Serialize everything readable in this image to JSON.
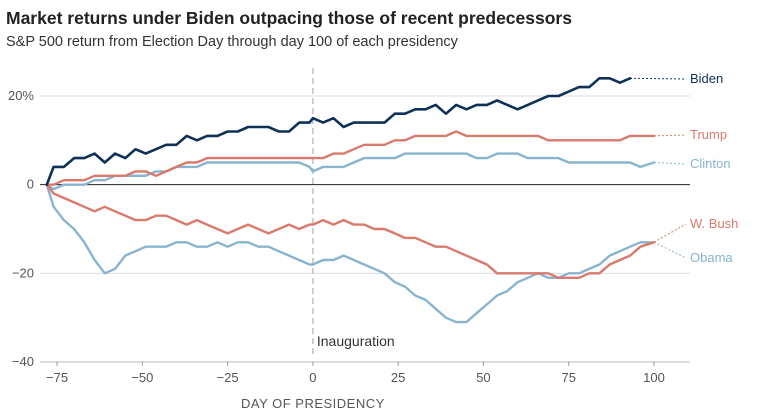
{
  "header": {
    "title": "Market returns under Biden outpacing those of recent predecessors",
    "subtitle": "S&P 500 return from Election Day through day 100 of each presidency"
  },
  "chart_data": {
    "type": "line",
    "title": "Market returns under Biden outpacing those of recent predecessors",
    "subtitle": "S&P 500 return from Election Day through day 100 of each presidency",
    "xlabel": "DAY OF PRESIDENCY",
    "ylabel": "",
    "xlim": [
      -80,
      110
    ],
    "ylim": [
      -40,
      25
    ],
    "x_ticks": [
      -75,
      -50,
      -25,
      0,
      25,
      50,
      75,
      100
    ],
    "x_tick_labels": [
      "−75",
      "−50",
      "−25",
      "0",
      "25",
      "50",
      "75",
      "100"
    ],
    "y_ticks": [
      20,
      0,
      -20,
      -40
    ],
    "y_tick_labels": [
      "20%",
      "0",
      "−20",
      "−40"
    ],
    "grid": "horizontal",
    "annotation": {
      "text": "Inauguration",
      "x": 0
    },
    "series": [
      {
        "name": "Biden",
        "color": "#0e3158",
        "x": [
          -78,
          -76,
          -73,
          -70,
          -67,
          -64,
          -61,
          -58,
          -55,
          -52,
          -49,
          -46,
          -43,
          -40,
          -37,
          -34,
          -31,
          -28,
          -25,
          -22,
          -19,
          -16,
          -13,
          -10,
          -7,
          -4,
          -1,
          0,
          3,
          6,
          9,
          12,
          15,
          18,
          21,
          24,
          27,
          30,
          33,
          36,
          39,
          42,
          45,
          48,
          51,
          54,
          57,
          60,
          63,
          66,
          69,
          72,
          75,
          78,
          81,
          84,
          87,
          90,
          93
        ],
        "y": [
          0,
          4,
          4,
          6,
          6,
          7,
          5,
          7,
          6,
          8,
          7,
          8,
          9,
          9,
          11,
          10,
          11,
          11,
          12,
          12,
          13,
          13,
          13,
          12,
          12,
          14,
          14,
          15,
          14,
          15,
          13,
          14,
          14,
          14,
          14,
          16,
          16,
          17,
          17,
          18,
          16,
          18,
          17,
          18,
          18,
          19,
          18,
          17,
          18,
          19,
          20,
          20,
          21,
          22,
          22,
          24,
          24,
          23,
          24
        ]
      },
      {
        "name": "Trump",
        "color": "#d97a6c",
        "x": [
          -78,
          -76,
          -73,
          -70,
          -67,
          -64,
          -61,
          -58,
          -55,
          -52,
          -49,
          -46,
          -43,
          -40,
          -37,
          -34,
          -31,
          -28,
          -25,
          -22,
          -19,
          -16,
          -13,
          -10,
          -7,
          -4,
          -1,
          0,
          3,
          6,
          9,
          12,
          15,
          18,
          21,
          24,
          27,
          30,
          33,
          36,
          39,
          42,
          45,
          48,
          51,
          54,
          57,
          60,
          63,
          66,
          69,
          72,
          75,
          78,
          81,
          84,
          87,
          90,
          93,
          96,
          100
        ],
        "y": [
          0,
          0,
          1,
          1,
          1,
          2,
          2,
          2,
          2,
          3,
          3,
          2,
          3,
          4,
          5,
          5,
          6,
          6,
          6,
          6,
          6,
          6,
          6,
          6,
          6,
          6,
          6,
          6,
          6,
          7,
          7,
          8,
          9,
          9,
          9,
          10,
          10,
          11,
          11,
          11,
          11,
          12,
          11,
          11,
          11,
          11,
          11,
          11,
          11,
          11,
          10,
          10,
          10,
          10,
          10,
          10,
          10,
          10,
          11,
          11,
          11
        ]
      },
      {
        "name": "Clinton",
        "color": "#89b4d0",
        "x": [
          -78,
          -76,
          -73,
          -70,
          -67,
          -64,
          -61,
          -58,
          -55,
          -52,
          -49,
          -46,
          -43,
          -40,
          -37,
          -34,
          -31,
          -28,
          -25,
          -22,
          -19,
          -16,
          -13,
          -10,
          -7,
          -4,
          -1,
          0,
          3,
          6,
          9,
          12,
          15,
          18,
          21,
          24,
          27,
          30,
          33,
          36,
          39,
          42,
          45,
          48,
          51,
          54,
          57,
          60,
          63,
          66,
          69,
          72,
          75,
          78,
          81,
          84,
          87,
          90,
          93,
          96,
          100
        ],
        "y": [
          0,
          -1,
          0,
          0,
          0,
          1,
          1,
          2,
          2,
          2,
          2,
          3,
          3,
          4,
          4,
          4,
          5,
          5,
          5,
          5,
          5,
          5,
          5,
          5,
          5,
          5,
          4,
          3,
          4,
          4,
          4,
          5,
          6,
          6,
          6,
          6,
          7,
          7,
          7,
          7,
          7,
          7,
          7,
          6,
          6,
          7,
          7,
          7,
          6,
          6,
          6,
          6,
          5,
          5,
          5,
          5,
          5,
          5,
          5,
          4,
          5
        ]
      },
      {
        "name": "W. Bush",
        "color": "#d97a6c",
        "x": [
          -78,
          -76,
          -73,
          -70,
          -67,
          -64,
          -61,
          -58,
          -55,
          -52,
          -49,
          -46,
          -43,
          -40,
          -37,
          -34,
          -31,
          -28,
          -25,
          -22,
          -19,
          -16,
          -13,
          -10,
          -7,
          -4,
          -1,
          0,
          3,
          6,
          9,
          12,
          15,
          18,
          21,
          24,
          27,
          30,
          33,
          36,
          39,
          42,
          45,
          48,
          51,
          54,
          57,
          60,
          63,
          66,
          69,
          72,
          75,
          78,
          81,
          84,
          87,
          90,
          93,
          96,
          100
        ],
        "y": [
          0,
          -2,
          -3,
          -4,
          -5,
          -6,
          -5,
          -6,
          -7,
          -8,
          -8,
          -7,
          -7,
          -8,
          -9,
          -8,
          -9,
          -10,
          -11,
          -10,
          -9,
          -10,
          -11,
          -10,
          -9,
          -10,
          -9,
          -9,
          -8,
          -9,
          -8,
          -9,
          -9,
          -10,
          -10,
          -11,
          -12,
          -12,
          -13,
          -14,
          -14,
          -15,
          -16,
          -17,
          -18,
          -20,
          -20,
          -20,
          -20,
          -20,
          -20,
          -21,
          -21,
          -21,
          -20,
          -20,
          -18,
          -17,
          -16,
          -14,
          -13
        ]
      },
      {
        "name": "Obama",
        "color": "#89b4d0",
        "x": [
          -78,
          -76,
          -73,
          -70,
          -67,
          -64,
          -61,
          -58,
          -55,
          -52,
          -49,
          -46,
          -43,
          -40,
          -37,
          -34,
          -31,
          -28,
          -25,
          -22,
          -19,
          -16,
          -13,
          -10,
          -7,
          -4,
          -1,
          0,
          3,
          6,
          9,
          12,
          15,
          18,
          21,
          24,
          27,
          30,
          33,
          36,
          39,
          42,
          45,
          48,
          51,
          54,
          57,
          60,
          63,
          66,
          69,
          72,
          75,
          78,
          81,
          84,
          87,
          90,
          93,
          96,
          100
        ],
        "y": [
          0,
          -5,
          -8,
          -10,
          -13,
          -17,
          -20,
          -19,
          -16,
          -15,
          -14,
          -14,
          -14,
          -13,
          -13,
          -14,
          -14,
          -13,
          -14,
          -13,
          -13,
          -14,
          -14,
          -15,
          -16,
          -17,
          -18,
          -18,
          -17,
          -17,
          -16,
          -17,
          -18,
          -19,
          -20,
          -22,
          -23,
          -25,
          -26,
          -28,
          -30,
          -31,
          -31,
          -29,
          -27,
          -25,
          -24,
          -22,
          -21,
          -20,
          -21,
          -21,
          -20,
          -20,
          -19,
          -18,
          -16,
          -15,
          -14,
          -13,
          -13
        ]
      }
    ]
  }
}
